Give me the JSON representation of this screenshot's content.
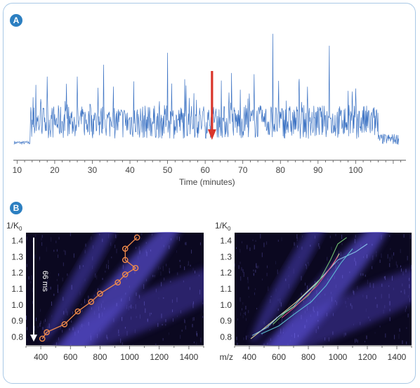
{
  "panels": {
    "a": {
      "label": "A"
    },
    "b": {
      "label": "B"
    }
  },
  "colors": {
    "accent": "#2c7fc1",
    "frame": "#a9c9e6",
    "trace": "#3e74c4",
    "arrow": "#d9352a",
    "heat_bg": "#0b0820",
    "heat_band": "#5b4fc9",
    "series": "#f08a4b"
  },
  "chart_data": [
    {
      "type": "line",
      "xlabel": "Time (minutes)",
      "ylabel": "",
      "xlim": [
        9,
        113
      ],
      "xticks": [
        10,
        20,
        30,
        40,
        50,
        60,
        70,
        80,
        90,
        100
      ],
      "annotations": [
        {
          "type": "arrow",
          "x": 62,
          "direction": "down",
          "color": "#d9352a"
        }
      ],
      "series": [
        {
          "values_note": "",
          "peaks": [
            {
              "x": 15,
              "y": 0.55
            },
            {
              "x": 18,
              "y": 0.62
            },
            {
              "x": 26,
              "y": 0.62
            },
            {
              "x": 33,
              "y": 0.72
            },
            {
              "x": 41,
              "y": 0.58
            },
            {
              "x": 50,
              "y": 0.82
            },
            {
              "x": 57,
              "y": 0.48
            },
            {
              "x": 67,
              "y": 0.65
            },
            {
              "x": 73,
              "y": 0.64
            },
            {
              "x": 78,
              "y": 0.98
            },
            {
              "x": 85,
              "y": 0.6
            },
            {
              "x": 93,
              "y": 0.88
            },
            {
              "x": 98,
              "y": 0.5
            },
            {
              "x": 100,
              "y": 0.52
            }
          ]
        }
      ],
      "grid": false
    },
    {
      "type": "heatmap",
      "xlabel": "",
      "ylabel": "1/K0",
      "xlim": [
        300,
        1500
      ],
      "ylim": [
        0.75,
        1.45
      ],
      "xticks": [
        400,
        600,
        800,
        1000,
        1200,
        1400
      ],
      "yticks": [
        0.8,
        0.9,
        1.0,
        1.1,
        1.2,
        1.3,
        1.4
      ],
      "annotations": [
        {
          "type": "arrow",
          "label": "66 ms",
          "direction": "down"
        }
      ],
      "series": [
        {
          "name": "",
          "x": [
            410,
            440,
            560,
            650,
            740,
            800,
            920,
            970,
            1040,
            970,
            970,
            1050
          ],
          "y": [
            0.79,
            0.83,
            0.88,
            0.96,
            1.02,
            1.07,
            1.14,
            1.19,
            1.23,
            1.28,
            1.35,
            1.42
          ]
        }
      ]
    },
    {
      "type": "heatmap",
      "xlabel": "m/z",
      "ylabel": "1/K0",
      "xlim": [
        300,
        1500
      ],
      "ylim": [
        0.75,
        1.45
      ],
      "xticks": [
        400,
        600,
        800,
        1000,
        1200,
        1400
      ],
      "yticks": [
        0.8,
        0.9,
        1.0,
        1.1,
        1.2,
        1.3,
        1.4
      ],
      "series": [
        {
          "name": "",
          "color": "#f0e4a0",
          "x": [
            410,
            480,
            560,
            640,
            720,
            800,
            880,
            960,
            1010
          ],
          "y": [
            0.79,
            0.84,
            0.9,
            0.96,
            1.02,
            1.09,
            1.16,
            1.24,
            1.32
          ]
        },
        {
          "name": "",
          "color": "#8fd0f0",
          "x": [
            420,
            520,
            600,
            700,
            760,
            840,
            900,
            1000,
            1120,
            1200
          ],
          "y": [
            0.81,
            0.86,
            0.93,
            0.99,
            1.05,
            1.12,
            1.18,
            1.28,
            1.33,
            1.38
          ]
        },
        {
          "name": "",
          "color": "#7ad07a",
          "x": [
            560,
            640,
            720,
            800,
            880,
            950,
            1000,
            1060
          ],
          "y": [
            0.88,
            0.95,
            1.0,
            1.06,
            1.16,
            1.28,
            1.38,
            1.42
          ]
        },
        {
          "name": "",
          "color": "#e0508a",
          "x": [
            620,
            700,
            780,
            860,
            940,
            1000
          ],
          "y": [
            0.92,
            0.98,
            1.05,
            1.12,
            1.22,
            1.3
          ]
        },
        {
          "name": "",
          "color": "#60c8d8",
          "x": [
            480,
            600,
            700,
            820,
            920,
            1020,
            1100
          ],
          "y": [
            0.82,
            0.87,
            0.94,
            1.02,
            1.12,
            1.26,
            1.35
          ]
        }
      ]
    }
  ]
}
